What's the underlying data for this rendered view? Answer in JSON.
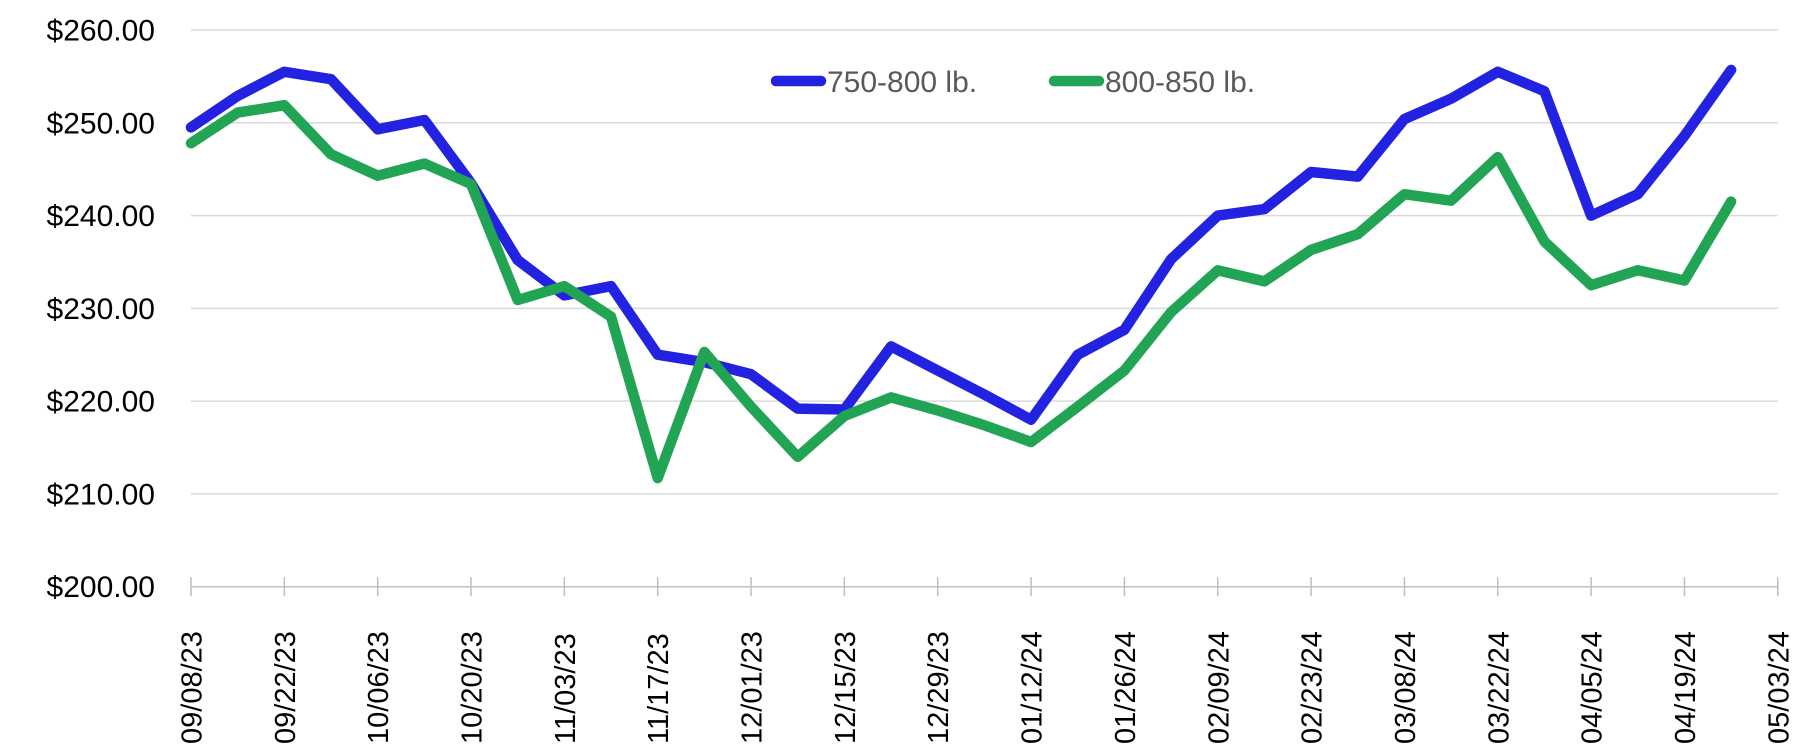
{
  "chart_data": {
    "type": "line",
    "title": "",
    "x": [
      "09/08/23",
      "09/15/23",
      "09/22/23",
      "09/29/23",
      "10/06/23",
      "10/13/23",
      "10/20/23",
      "10/27/23",
      "11/03/23",
      "11/10/23",
      "11/17/23",
      "11/24/23",
      "12/01/23",
      "12/08/23",
      "12/15/23",
      "12/22/23",
      "12/29/23",
      "01/05/24",
      "01/12/24",
      "01/19/24",
      "01/26/24",
      "02/02/24",
      "02/09/24",
      "02/16/24",
      "02/23/24",
      "03/01/24",
      "03/08/24",
      "03/15/24",
      "03/22/24",
      "03/29/24",
      "04/05/24",
      "04/12/24",
      "04/19/24",
      "04/26/24"
    ],
    "x_tick_labels": [
      "09/08/23",
      "09/22/23",
      "10/06/23",
      "10/20/23",
      "11/03/23",
      "11/17/23",
      "12/01/23",
      "12/15/23",
      "12/29/23",
      "01/12/24",
      "01/26/24",
      "02/09/24",
      "02/23/24",
      "03/08/24",
      "03/22/24",
      "04/05/24",
      "04/19/24",
      "05/03/24"
    ],
    "series": [
      {
        "name": "750-800 lb.",
        "color": "#2222E0",
        "values": [
          249.5,
          252.9,
          255.5,
          254.7,
          249.3,
          250.3,
          243.5,
          235.2,
          231.4,
          232.4,
          225.0,
          224.2,
          222.9,
          219.2,
          219.1,
          225.9,
          223.3,
          220.7,
          218.0,
          225.0,
          227.7,
          235.3,
          240.0,
          240.7,
          244.7,
          244.2,
          250.4,
          252.6,
          255.5,
          253.4,
          240.0,
          242.3,
          248.6,
          255.7
        ]
      },
      {
        "name": "800-850 lb.",
        "color": "#22A455",
        "values": [
          247.8,
          251.1,
          251.9,
          246.6,
          244.3,
          245.6,
          243.4,
          230.9,
          232.4,
          229.1,
          211.7,
          225.3,
          219.4,
          214.0,
          218.4,
          220.4,
          219.0,
          217.4,
          215.6,
          219.4,
          223.3,
          229.6,
          234.1,
          232.9,
          236.3,
          238.0,
          242.3,
          241.6,
          246.3,
          237.2,
          232.5,
          234.1,
          233.0,
          241.5
        ]
      }
    ],
    "ylim": [
      200,
      260
    ],
    "y_tick_step": 10,
    "y_tick_labels": [
      "$200.00",
      "$210.00",
      "$220.00",
      "$230.00",
      "$240.00",
      "$250.00",
      "$260.00"
    ],
    "grid": "horizontal",
    "legend_position": "top-center",
    "colors": {
      "gridline": "#D9D9D9",
      "axis": "#BFBFBF",
      "tick_label": "#000000",
      "legend_text": "#595959",
      "background": "#FFFFFF"
    }
  }
}
